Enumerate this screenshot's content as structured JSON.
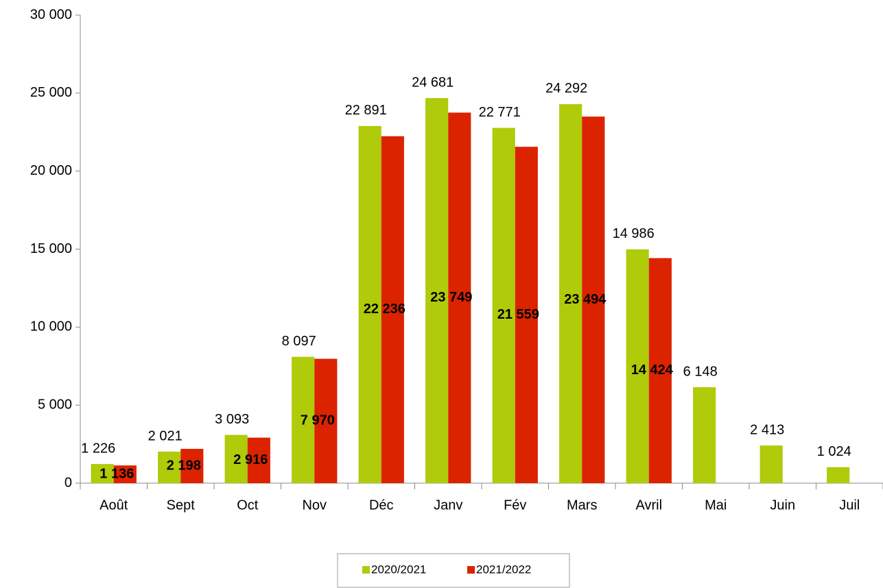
{
  "chart_data": {
    "type": "bar",
    "categories": [
      "Août",
      "Sept",
      "Oct",
      "Nov",
      "Déc",
      "Janv",
      "Fév",
      "Mars",
      "Avril",
      "Mai",
      "Juin",
      "Juil"
    ],
    "series": [
      {
        "name": "2020/2021",
        "color": "#afcb0a",
        "values": [
          1226,
          2021,
          3093,
          8097,
          22891,
          24681,
          22771,
          24292,
          14986,
          6148,
          2413,
          1024
        ],
        "value_labels": [
          "1 226",
          "2 021",
          "3 093",
          "8 097",
          "22 891",
          "24 681",
          "22 771",
          "24 292",
          "14 986",
          "6 148",
          "2 413",
          "1 024"
        ]
      },
      {
        "name": "2021/2022",
        "color": "#dc2300",
        "values": [
          1136,
          2198,
          2916,
          7970,
          22236,
          23749,
          21559,
          23494,
          14424,
          null,
          null,
          null
        ],
        "value_labels": [
          "1 136",
          "2 198",
          "2 916",
          "7 970",
          "22 236",
          "23 749",
          "21 559",
          "23 494",
          "14 424",
          null,
          null,
          null
        ]
      }
    ],
    "ylim": [
      0,
      30000
    ],
    "yticks": [
      {
        "value": 0,
        "label": "0"
      },
      {
        "value": 5000,
        "label": "5 000"
      },
      {
        "value": 10000,
        "label": "10 000"
      },
      {
        "value": 15000,
        "label": "15 000"
      },
      {
        "value": 20000,
        "label": "20 000"
      },
      {
        "value": 25000,
        "label": "25 000"
      },
      {
        "value": 30000,
        "label": "30 000"
      }
    ],
    "grid": false,
    "legend": "bottom"
  }
}
